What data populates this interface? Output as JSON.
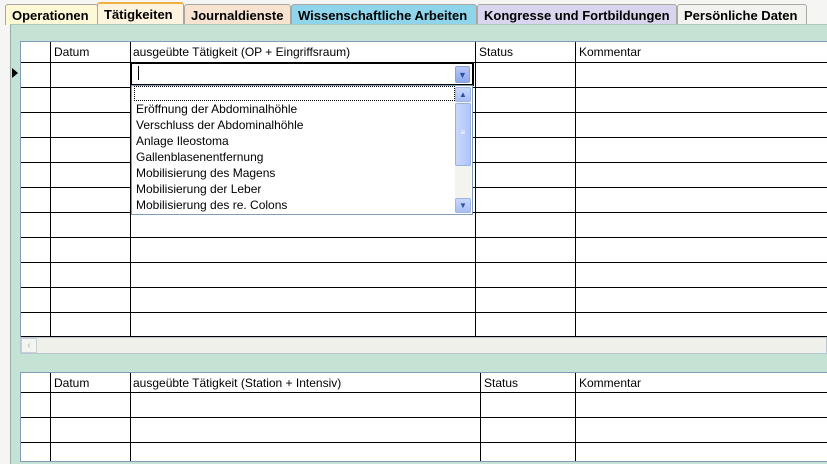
{
  "tabs": [
    {
      "label": "Operationen",
      "color": "#fdf8d6"
    },
    {
      "label": "Tätigkeiten",
      "color": "#fdf3df",
      "active": true
    },
    {
      "label": "Journaldienste",
      "color": "#f7e3cf"
    },
    {
      "label": "Wissenschaftliche Arbeiten",
      "color": "#8ed4ea"
    },
    {
      "label": "Kongresse und Fortbildungen",
      "color": "#d9d5ee"
    },
    {
      "label": "Persönliche Daten",
      "color": "#f2f2ee"
    }
  ],
  "grid1": {
    "headers": [
      "Datum",
      "ausgeübte Tätigkeit (OP + Eingriffsraum)",
      "Status",
      "Kommentar"
    ]
  },
  "grid2": {
    "headers": [
      "Datum",
      "ausgeübte Tätigkeit (Station + Intensiv)",
      "Status",
      "Kommentar"
    ]
  },
  "dropdown": {
    "value": "",
    "options": [
      "",
      "Eröffnung der Abdominalhöhle",
      "Verschluss der Abdominalhöhle",
      "Anlage Ileostoma",
      "Gallenblasenentfernung",
      "Mobilisierung des Magens",
      "Mobilisierung der Leber",
      "Mobilisierung des re. Colons"
    ]
  }
}
